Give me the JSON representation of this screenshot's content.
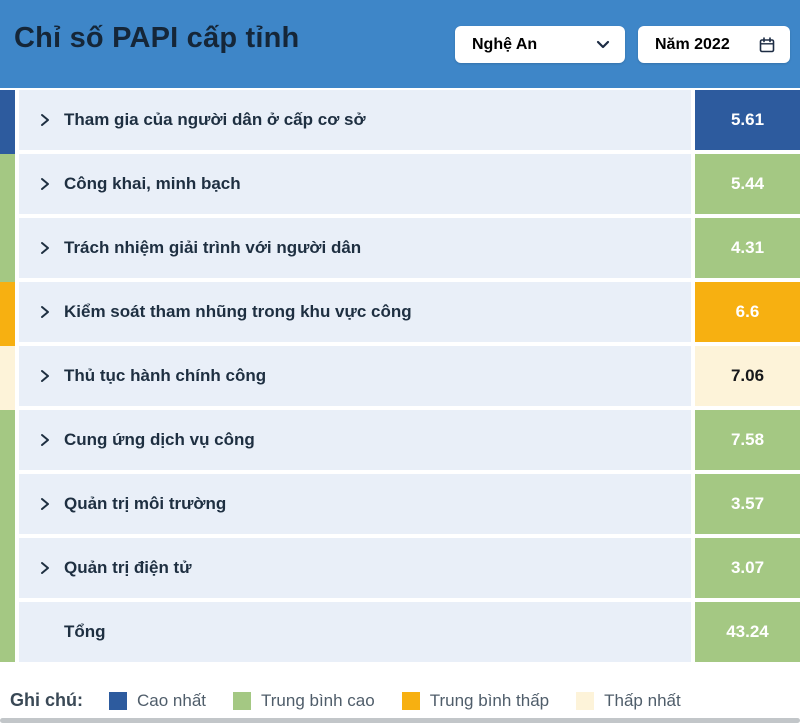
{
  "header": {
    "title": "Chỉ số PAPI cấp tỉnh",
    "province_select": {
      "value": "Nghệ An"
    },
    "year_picker": {
      "value": "Năm 2022"
    }
  },
  "colors": {
    "header_bg": "#3e86c8",
    "title_text": "#152638",
    "row_body_bg": "#e9eff8",
    "row_text": "#1e2f41",
    "highest": "#2d5b9e",
    "mid_high": "#a4c883",
    "mid_low": "#f7b011",
    "lowest": "#fdf3d9",
    "score_text_light": "#ffffff",
    "score_text_dark": "#17181a",
    "legend_title_text": "#3a4956",
    "legend_label_text": "#4f5d6a"
  },
  "rows": [
    {
      "label": "Tham gia của người dân ở cấp cơ sở",
      "value": "5.61",
      "level": "highest",
      "chevron": true
    },
    {
      "label": "Công khai, minh bạch",
      "value": "5.44",
      "level": "mid_high",
      "chevron": true
    },
    {
      "label": "Trách nhiệm giải trình với người dân",
      "value": "4.31",
      "level": "mid_high",
      "chevron": true
    },
    {
      "label": "Kiểm soát tham nhũng trong khu vực công",
      "value": "6.6",
      "level": "mid_low",
      "chevron": true
    },
    {
      "label": "Thủ tục hành chính công",
      "value": "7.06",
      "level": "lowest",
      "chevron": true
    },
    {
      "label": "Cung ứng dịch vụ công",
      "value": "7.58",
      "level": "mid_high",
      "chevron": true
    },
    {
      "label": "Quản trị môi trường",
      "value": "3.57",
      "level": "mid_high",
      "chevron": true
    },
    {
      "label": "Quản trị điện tử",
      "value": "3.07",
      "level": "mid_high",
      "chevron": true
    },
    {
      "label": "Tổng",
      "value": "43.24",
      "level": "mid_high",
      "chevron": false
    }
  ],
  "legend": {
    "title": "Ghi chú:",
    "items": [
      {
        "label": "Cao nhất",
        "level": "highest"
      },
      {
        "label": "Trung bình cao",
        "level": "mid_high"
      },
      {
        "label": "Trung bình thấp",
        "level": "mid_low"
      },
      {
        "label": "Thấp nhất",
        "level": "lowest"
      }
    ]
  },
  "chart_data": {
    "type": "table",
    "title": "Chỉ số PAPI cấp tỉnh",
    "filters": {
      "province": "Nghệ An",
      "year": "Năm 2022"
    },
    "categories": [
      "Tham gia của người dân ở cấp cơ sở",
      "Công khai, minh bạch",
      "Trách nhiệm giải trình với người dân",
      "Kiểm soát tham nhũng trong khu vực công",
      "Thủ tục hành chính công",
      "Cung ứng dịch vụ công",
      "Quản trị môi trường",
      "Quản trị điện tử",
      "Tổng"
    ],
    "values": [
      5.61,
      5.44,
      4.31,
      6.6,
      7.06,
      7.58,
      3.57,
      3.07,
      43.24
    ],
    "levels": [
      "highest",
      "mid_high",
      "mid_high",
      "mid_low",
      "lowest",
      "mid_high",
      "mid_high",
      "mid_high",
      "mid_high"
    ],
    "legend_position": "bottom",
    "legend_entries": [
      "Cao nhất",
      "Trung bình cao",
      "Trung bình thấp",
      "Thấp nhất"
    ]
  }
}
